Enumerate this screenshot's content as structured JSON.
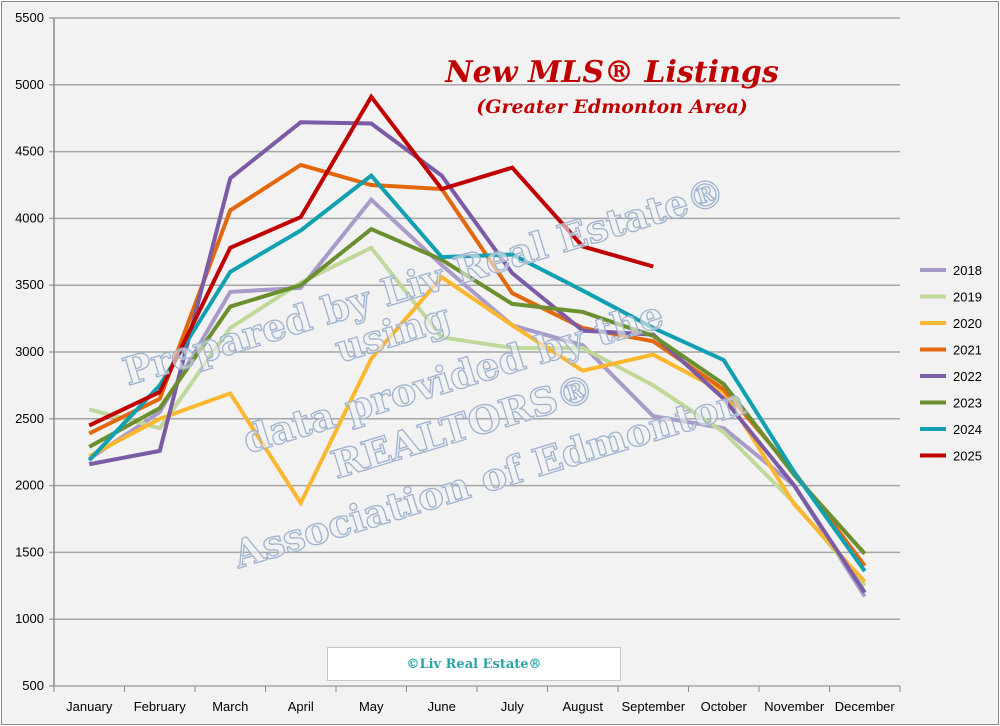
{
  "chart_data": {
    "type": "line",
    "title": "New MLS® Listings",
    "subtitle": "(Greater Edmonton Area)",
    "xlabel": "",
    "ylabel": "",
    "ylim": [
      500,
      5500
    ],
    "yticks": [
      500,
      1000,
      1500,
      2000,
      2500,
      3000,
      3500,
      4000,
      4500,
      5000,
      5500
    ],
    "grid": true,
    "legend_position": "right",
    "categories": [
      "January",
      "February",
      "March",
      "April",
      "May",
      "June",
      "July",
      "August",
      "September",
      "October",
      "November",
      "December"
    ],
    "series": [
      {
        "name": "2018",
        "color": "#a99bc9",
        "values": [
          2200,
          2550,
          3450,
          3480,
          4140,
          3650,
          3200,
          3050,
          2520,
          2430,
          2000,
          1170
        ]
      },
      {
        "name": "2019",
        "color": "#c0d89a",
        "values": [
          2570,
          2430,
          3180,
          3520,
          3780,
          3110,
          3030,
          3030,
          2750,
          2400,
          1870,
          1250
        ]
      },
      {
        "name": "2020",
        "color": "#fbb72f",
        "values": [
          2220,
          2500,
          2690,
          1870,
          2950,
          3560,
          3200,
          2860,
          2980,
          2700,
          1860,
          1280
        ]
      },
      {
        "name": "2021",
        "color": "#e3670b",
        "values": [
          2390,
          2650,
          4060,
          4400,
          4250,
          4220,
          3440,
          3180,
          3080,
          2720,
          2100,
          1400
        ]
      },
      {
        "name": "2022",
        "color": "#7b5ba6",
        "values": [
          2160,
          2260,
          4300,
          4720,
          4710,
          4320,
          3590,
          3160,
          3130,
          2650,
          2000,
          1200
        ]
      },
      {
        "name": "2023",
        "color": "#6b8e2e",
        "values": [
          2290,
          2580,
          3340,
          3500,
          3920,
          3690,
          3360,
          3300,
          3120,
          2760,
          2080,
          1490
        ]
      },
      {
        "name": "2024",
        "color": "#10a0b0",
        "values": [
          2190,
          2750,
          3600,
          3910,
          4320,
          3710,
          3730,
          3460,
          3180,
          2940,
          2100,
          1360
        ]
      },
      {
        "name": "2025",
        "color": "#c00000",
        "values": [
          2450,
          2700,
          3780,
          4010,
          4910,
          4220,
          4380,
          3790,
          3640,
          null,
          null,
          null
        ]
      }
    ],
    "watermark": [
      "Prepared by Liv Real Estate®",
      "using",
      "data provided by the",
      "REALTORS®",
      "Association of Edmonton"
    ],
    "footer": "©Liv Real Estate®"
  }
}
